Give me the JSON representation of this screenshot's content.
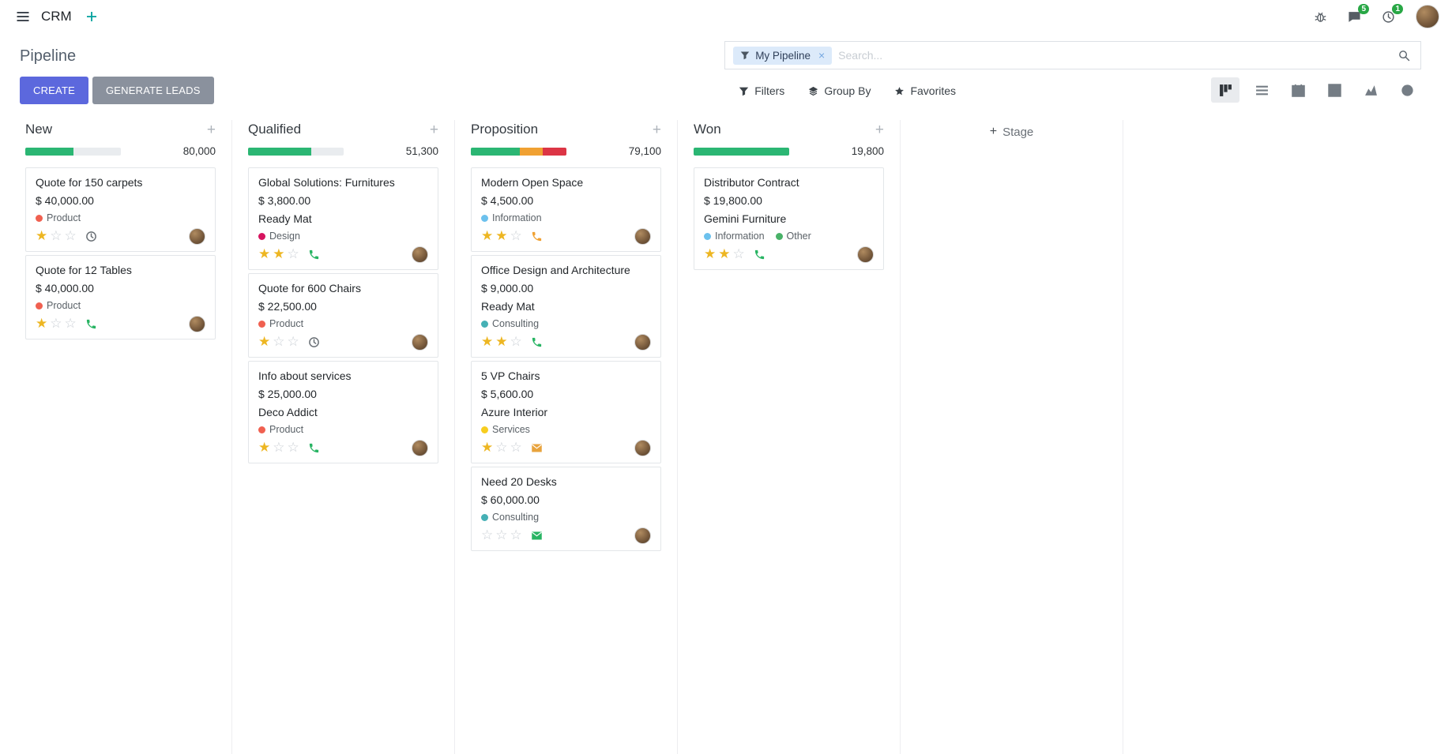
{
  "navbar": {
    "app_name": "CRM",
    "messages_badge": "5",
    "activities_badge": "1"
  },
  "control_panel": {
    "title": "Pipeline",
    "search": {
      "facet_label": "My Pipeline",
      "facet_remove": "×",
      "placeholder": "Search..."
    },
    "create_label": "CREATE",
    "generate_leads_label": "GENERATE LEADS",
    "filters_label": "Filters",
    "group_by_label": "Group By",
    "favorites_label": "Favorites",
    "view_switcher": [
      {
        "name": "kanban",
        "active": true
      },
      {
        "name": "list",
        "active": false
      },
      {
        "name": "calendar",
        "active": false
      },
      {
        "name": "pivot",
        "active": false
      },
      {
        "name": "graph",
        "active": false
      },
      {
        "name": "activity",
        "active": false
      }
    ]
  },
  "board": {
    "add_stage_label": "Stage",
    "columns": [
      {
        "name": "New",
        "total": "80,000",
        "progress": [
          {
            "color": "#2bb673",
            "pct": 50
          }
        ],
        "cards": [
          {
            "title": "Quote for 150 carpets",
            "amount": "$ 40,000.00",
            "partner": "",
            "tags": [
              {
                "label": "Product",
                "color": "#f06050"
              }
            ],
            "stars": 1,
            "activity": {
              "type": "clock",
              "color": "#6b7177"
            }
          },
          {
            "title": "Quote for 12 Tables",
            "amount": "$ 40,000.00",
            "partner": "",
            "tags": [
              {
                "label": "Product",
                "color": "#f06050"
              }
            ],
            "stars": 1,
            "activity": {
              "type": "phone",
              "color": "#28b463"
            }
          }
        ]
      },
      {
        "name": "Qualified",
        "total": "51,300",
        "progress": [
          {
            "color": "#2bb673",
            "pct": 66
          }
        ],
        "cards": [
          {
            "title": "Global Solutions: Furnitures",
            "amount": "$ 3,800.00",
            "partner": "Ready Mat",
            "tags": [
              {
                "label": "Design",
                "color": "#d6145f"
              }
            ],
            "stars": 2,
            "activity": {
              "type": "phone",
              "color": "#28b463"
            }
          },
          {
            "title": "Quote for 600 Chairs",
            "amount": "$ 22,500.00",
            "partner": "",
            "tags": [
              {
                "label": "Product",
                "color": "#f06050"
              }
            ],
            "stars": 1,
            "activity": {
              "type": "clock",
              "color": "#6b7177"
            }
          },
          {
            "title": "Info about services",
            "amount": "$ 25,000.00",
            "partner": "Deco Addict",
            "tags": [
              {
                "label": "Product",
                "color": "#f06050"
              }
            ],
            "stars": 1,
            "activity": {
              "type": "phone",
              "color": "#28b463"
            }
          }
        ]
      },
      {
        "name": "Proposition",
        "total": "79,100",
        "progress": [
          {
            "color": "#2bb673",
            "pct": 51
          },
          {
            "color": "#f0a132",
            "pct": 24
          },
          {
            "color": "#dc3545",
            "pct": 25
          }
        ],
        "cards": [
          {
            "title": "Modern Open Space",
            "amount": "$ 4,500.00",
            "partner": "",
            "tags": [
              {
                "label": "Information",
                "color": "#6cc1ed"
              }
            ],
            "stars": 2,
            "activity": {
              "type": "phone",
              "color": "#f0a132"
            }
          },
          {
            "title": "Office Design and Architecture",
            "amount": "$ 9,000.00",
            "partner": "Ready Mat",
            "tags": [
              {
                "label": "Consulting",
                "color": "#45b0b5"
              }
            ],
            "stars": 2,
            "activity": {
              "type": "phone",
              "color": "#28b463"
            }
          },
          {
            "title": "5 VP Chairs",
            "amount": "$ 5,600.00",
            "partner": "Azure Interior",
            "tags": [
              {
                "label": "Services",
                "color": "#f7cd1f"
              }
            ],
            "stars": 1,
            "activity": {
              "type": "envelope",
              "color": "#e8a33d"
            }
          },
          {
            "title": "Need 20 Desks",
            "amount": "$ 60,000.00",
            "partner": "",
            "tags": [
              {
                "label": "Consulting",
                "color": "#45b0b5"
              }
            ],
            "stars": 0,
            "activity": {
              "type": "envelope",
              "color": "#28b463"
            }
          }
        ]
      },
      {
        "name": "Won",
        "total": "19,800",
        "progress": [
          {
            "color": "#2bb673",
            "pct": 100
          }
        ],
        "cards": [
          {
            "title": "Distributor Contract",
            "amount": "$ 19,800.00",
            "partner": "Gemini Furniture",
            "tags": [
              {
                "label": "Information",
                "color": "#6cc1ed"
              },
              {
                "label": "Other",
                "color": "#49b268"
              }
            ],
            "stars": 2,
            "activity": {
              "type": "phone",
              "color": "#28b463"
            }
          }
        ]
      }
    ]
  }
}
